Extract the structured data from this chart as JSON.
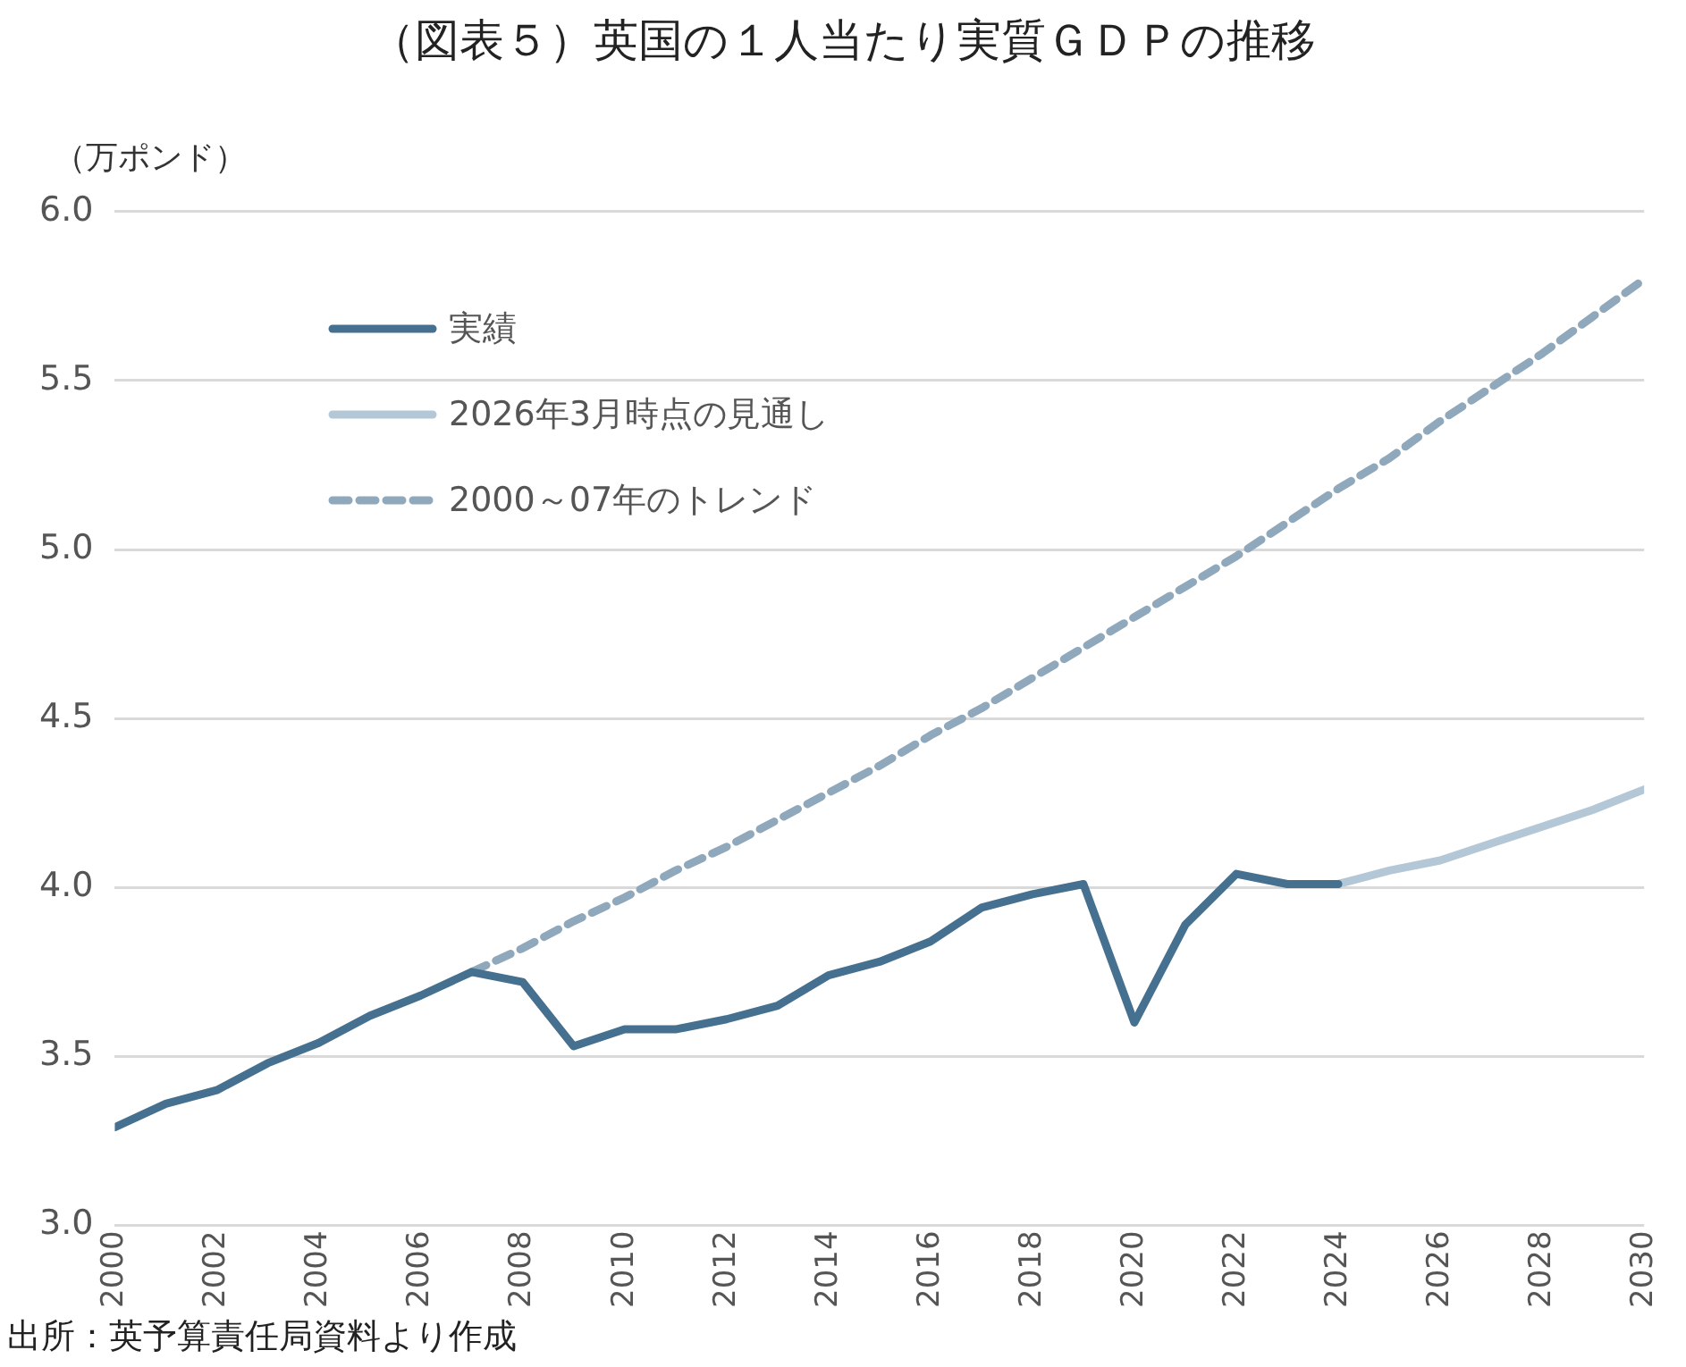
{
  "chart_data": {
    "type": "line",
    "title": "（図表５）英国の１人当たり実質ＧＤＰの推移",
    "ylabel": "（万ポンド）",
    "annotations": [
      "出所：英予算責任局資料より作成"
    ],
    "xlim": [
      2000,
      2030
    ],
    "xticks": [
      2000,
      2002,
      2004,
      2006,
      2008,
      2010,
      2012,
      2014,
      2016,
      2018,
      2020,
      2022,
      2024,
      2026,
      2028,
      2030
    ],
    "ylim": [
      3.0,
      6.0
    ],
    "yticks": [
      {
        "value": 3.0,
        "label": "3.0"
      },
      {
        "value": 3.5,
        "label": "3.5"
      },
      {
        "value": 4.0,
        "label": "4.0"
      },
      {
        "value": 4.5,
        "label": "4.5"
      },
      {
        "value": 5.0,
        "label": "5.0"
      },
      {
        "value": 5.5,
        "label": "5.5"
      },
      {
        "value": 6.0,
        "label": "6.0"
      }
    ],
    "grid": "y",
    "legend": "top left",
    "marker": "none",
    "series": [
      {
        "name": "実績",
        "color": "#46708f",
        "line_style": "solid",
        "x": [
          2000,
          2001,
          2002,
          2003,
          2004,
          2005,
          2006,
          2007,
          2008,
          2009,
          2010,
          2011,
          2012,
          2013,
          2014,
          2015,
          2016,
          2017,
          2018,
          2019,
          2020,
          2021,
          2022,
          2023,
          2024
        ],
        "values": [
          3.29,
          3.36,
          3.4,
          3.48,
          3.54,
          3.62,
          3.68,
          3.75,
          3.72,
          3.53,
          3.58,
          3.58,
          3.61,
          3.65,
          3.74,
          3.78,
          3.84,
          3.94,
          3.98,
          4.01,
          3.6,
          3.89,
          4.04,
          4.01,
          4.01
        ]
      },
      {
        "name": "2026年3月時点の見通し",
        "color": "#b4c7d7",
        "line_style": "solid",
        "x": [
          2024,
          2025,
          2026,
          2027,
          2028,
          2029,
          2030
        ],
        "values": [
          4.01,
          4.05,
          4.08,
          4.13,
          4.18,
          4.23,
          4.29
        ]
      },
      {
        "name": "2000～07年のトレンド",
        "color": "#8fa8bc",
        "line_style": "dashed",
        "x": [
          2007,
          2008,
          2009,
          2010,
          2011,
          2012,
          2013,
          2014,
          2015,
          2016,
          2017,
          2018,
          2019,
          2020,
          2021,
          2022,
          2023,
          2024,
          2025,
          2026,
          2027,
          2028,
          2029,
          2030
        ],
        "values": [
          3.75,
          3.82,
          3.9,
          3.97,
          4.05,
          4.12,
          4.2,
          4.28,
          4.36,
          4.45,
          4.53,
          4.62,
          4.71,
          4.8,
          4.89,
          4.98,
          5.08,
          5.18,
          5.27,
          5.38,
          5.48,
          5.58,
          5.69,
          5.8
        ]
      }
    ]
  }
}
